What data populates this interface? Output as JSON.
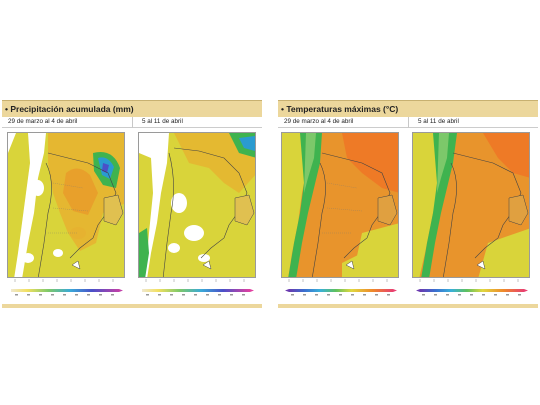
{
  "colors": {
    "header_bg": "#ecd79c",
    "accent_dot": "#333333",
    "map_base": "#d8d838"
  },
  "panels": [
    {
      "title": "Precipitación acumulada (mm)",
      "maps": [
        {
          "period": "29 de marzo al 4 de abril",
          "variable": "precipitation"
        },
        {
          "period": "5 al 11 de abril",
          "variable": "precipitation"
        }
      ],
      "legend_scale": "precipitation"
    },
    {
      "title": "Temperaturas máximas (°C)",
      "maps": [
        {
          "period": "29 de marzo al 4 de abril",
          "variable": "temperature"
        },
        {
          "period": "5 al 11 de abril",
          "variable": "temperature"
        }
      ],
      "legend_scale": "temperature"
    }
  ]
}
